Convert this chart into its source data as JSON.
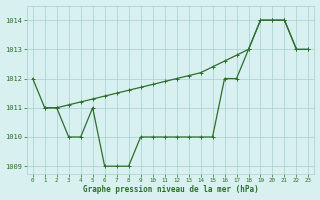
{
  "jagged_x": [
    0,
    1,
    2,
    3,
    4,
    5,
    6,
    7,
    8,
    9,
    10,
    11,
    12,
    13,
    14,
    15,
    16,
    17,
    18,
    19,
    20,
    21,
    22,
    23
  ],
  "jagged_y": [
    1012,
    1011,
    1011,
    1010,
    1010,
    1011,
    1009,
    1009,
    1009,
    1010,
    1010,
    1010,
    1010,
    1010,
    1010,
    1010,
    1012,
    1012,
    1013,
    1014,
    1014,
    1014,
    1013,
    1013
  ],
  "trend_x": [
    1,
    2,
    3,
    4,
    5,
    6,
    7,
    8,
    9,
    10,
    11,
    12,
    13,
    14,
    15,
    16,
    17,
    18,
    19,
    20,
    21,
    22,
    23
  ],
  "trend_y": [
    1011,
    1011,
    1011.1,
    1011.2,
    1011.3,
    1011.4,
    1011.5,
    1011.6,
    1011.7,
    1011.8,
    1011.9,
    1012.0,
    1012.1,
    1012.2,
    1012.4,
    1012.6,
    1012.8,
    1013.0,
    1014.0,
    1014.0,
    1014.0,
    1013.0,
    1013.0
  ],
  "line_color": "#2d6e2d",
  "bg_color": "#d8f0f0",
  "grid_color": "#aacece",
  "xlabel": "Graphe pression niveau de la mer (hPa)",
  "ylim": [
    1008.75,
    1014.5
  ],
  "xlim": [
    -0.5,
    23.5
  ],
  "yticks": [
    1009,
    1010,
    1011,
    1012,
    1013,
    1014
  ],
  "xticks": [
    0,
    1,
    2,
    3,
    4,
    5,
    6,
    7,
    8,
    9,
    10,
    11,
    12,
    13,
    14,
    15,
    16,
    17,
    18,
    19,
    20,
    21,
    22,
    23
  ]
}
